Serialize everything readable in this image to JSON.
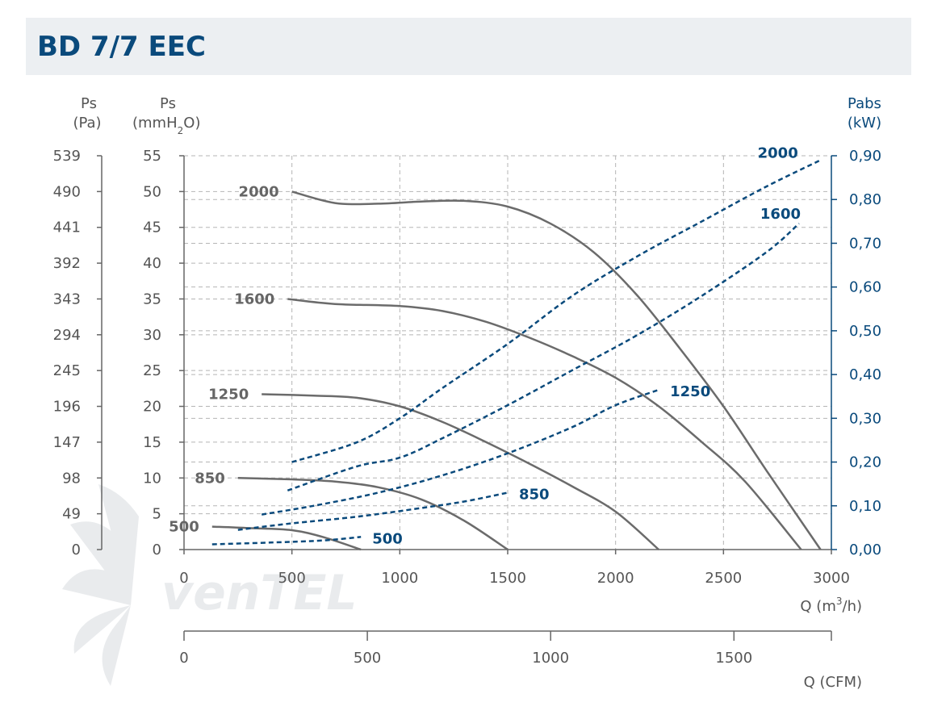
{
  "title": "BD 7/7 EEC",
  "watermark": "venTEL",
  "axes": {
    "left_pa_unit_line1": "Ps",
    "left_pa_unit_line2": "(Pa)",
    "left_mm_unit_line1": "Ps",
    "left_mm_unit_line2_a": "(mmH",
    "left_mm_unit_line2_sub": "2",
    "left_mm_unit_line2_b": "O)",
    "right_unit_line1": "Pabs",
    "right_unit_line2": "(kW)",
    "x_unit_a": "Q (m",
    "x_unit_sup": "3",
    "x_unit_b": "/h)",
    "cfm_unit": "Q (CFM)"
  },
  "chart_data": {
    "type": "line",
    "title": "BD 7/7 EEC",
    "xlabel": "Q (m3/h)",
    "ylabel": "Ps (mmH2O)",
    "y2label": "Pabs (kW)",
    "xlim": [
      0,
      3000
    ],
    "ylim": [
      0,
      55
    ],
    "y2lim": [
      0,
      0.9
    ],
    "x_ticks": [
      "0",
      "500",
      "1000",
      "1500",
      "2000",
      "2500",
      "3000"
    ],
    "x_tick_values": [
      0,
      500,
      1000,
      1500,
      2000,
      2500,
      3000
    ],
    "y_mm_ticks": [
      "0",
      "5",
      "10",
      "15",
      "20",
      "25",
      "30",
      "35",
      "40",
      "45",
      "50",
      "55"
    ],
    "y_pa_ticks": [
      "0",
      "49",
      "98",
      "147",
      "196",
      "245",
      "294",
      "343",
      "392",
      "441",
      "490",
      "539"
    ],
    "y2_ticks": [
      "0,00",
      "0,10",
      "0,20",
      "0,30",
      "0,40",
      "0,50",
      "0,60",
      "0,70",
      "0,80",
      "0,90"
    ],
    "cfm_ticks": [
      "0",
      "500",
      "1000",
      "1500"
    ],
    "cfm_tick_values": [
      0,
      500,
      1000,
      1500
    ],
    "grid": true,
    "pressure_series": [
      {
        "name": "2000",
        "x": [
          500,
          700,
          900,
          1100,
          1300,
          1500,
          1700,
          1900,
          2100,
          2300,
          2500,
          2700,
          2950
        ],
        "y": [
          50,
          48.4,
          48.3,
          48.6,
          48.7,
          47.9,
          45.5,
          41.5,
          35.5,
          28,
          20,
          11,
          0
        ]
      },
      {
        "name": "1600",
        "x": [
          480,
          700,
          1000,
          1200,
          1400,
          1600,
          1800,
          2000,
          2200,
          2400,
          2600,
          2860
        ],
        "y": [
          35,
          34.3,
          34,
          33.3,
          31.8,
          29.6,
          27,
          24,
          20,
          15,
          9.5,
          0
        ]
      },
      {
        "name": "1250",
        "x": [
          360,
          600,
          800,
          1000,
          1200,
          1400,
          1600,
          1800,
          2000,
          2200
        ],
        "y": [
          21.7,
          21.5,
          21.2,
          20,
          17.8,
          15,
          12,
          8.8,
          5.3,
          0
        ]
      },
      {
        "name": "850",
        "x": [
          250,
          500,
          700,
          900,
          1100,
          1300,
          1500
        ],
        "y": [
          10,
          9.8,
          9.5,
          8.7,
          7,
          4,
          0
        ]
      },
      {
        "name": "500",
        "x": [
          130,
          300,
          500,
          650,
          820
        ],
        "y": [
          3.2,
          3,
          2.7,
          1.7,
          0
        ]
      }
    ],
    "power_series": [
      {
        "name": "2000",
        "x": [
          500,
          800,
          1000,
          1200,
          1500,
          1800,
          2100,
          2400,
          2700,
          2950
        ],
        "y": [
          0.2,
          0.245,
          0.3,
          0.37,
          0.47,
          0.58,
          0.67,
          0.75,
          0.83,
          0.89
        ]
      },
      {
        "name": "1600",
        "x": [
          480,
          800,
          1000,
          1200,
          1500,
          1800,
          2100,
          2400,
          2700,
          2850
        ],
        "y": [
          0.135,
          0.19,
          0.21,
          0.255,
          0.33,
          0.41,
          0.49,
          0.58,
          0.68,
          0.745
        ]
      },
      {
        "name": "1250",
        "x": [
          360,
          600,
          900,
          1200,
          1500,
          1800,
          2000,
          2200
        ],
        "y": [
          0.08,
          0.1,
          0.13,
          0.17,
          0.22,
          0.28,
          0.33,
          0.365
        ]
      },
      {
        "name": "850",
        "x": [
          250,
          500,
          800,
          1100,
          1300,
          1500
        ],
        "y": [
          0.045,
          0.06,
          0.075,
          0.095,
          0.11,
          0.13
        ]
      },
      {
        "name": "500",
        "x": [
          130,
          400,
          650,
          820
        ],
        "y": [
          0.012,
          0.016,
          0.021,
          0.029
        ]
      }
    ],
    "legend": "none"
  }
}
